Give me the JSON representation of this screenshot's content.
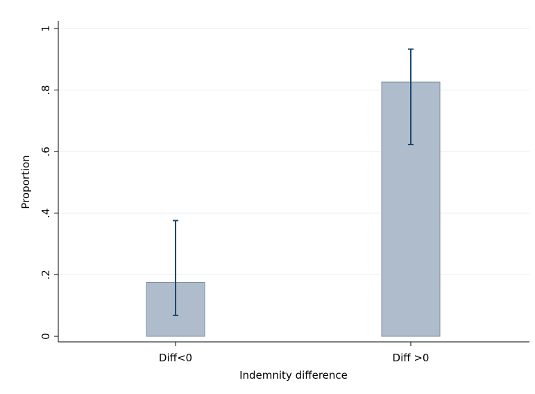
{
  "chart_data": {
    "type": "bar",
    "categories": [
      "Diff<0",
      "Diff >0"
    ],
    "values": [
      0.175,
      0.826
    ],
    "ci_lower": [
      0.068,
      0.623
    ],
    "ci_upper": [
      0.376,
      0.933
    ],
    "title": "",
    "xlabel": "Indemnity difference",
    "ylabel": "Proportion",
    "ylim": [
      0,
      1
    ],
    "yticks": [
      0,
      0.2,
      0.4,
      0.6,
      0.8,
      1
    ],
    "ytick_labels": [
      "0",
      ".2",
      ".4",
      ".6",
      ".8",
      "1"
    ],
    "grid": true,
    "legend": "none",
    "colors": {
      "bar_fill": "#aebccb",
      "bar_stroke": "#7f8fa0",
      "error_bar": "#1a476f",
      "grid": "#e6eef2",
      "axis": "#000000",
      "background": "#ffffff"
    }
  }
}
